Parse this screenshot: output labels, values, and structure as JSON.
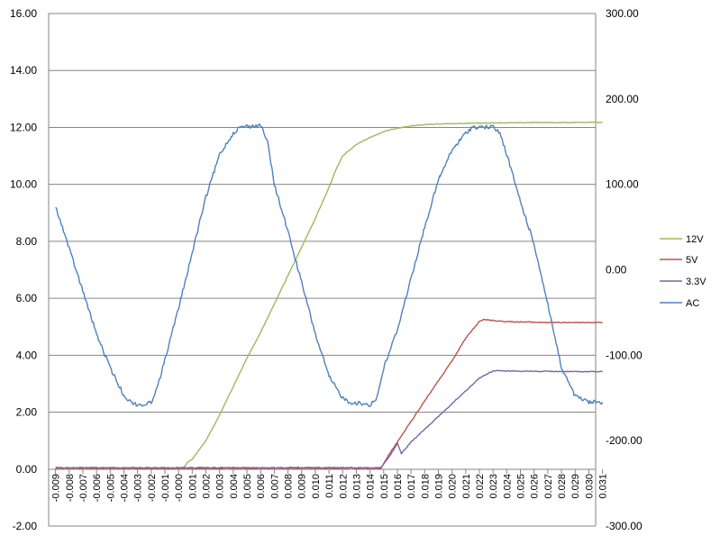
{
  "chart_data": {
    "type": "line",
    "x_tick_labels": [
      "-0.009",
      "-0.008",
      "-0.007",
      "-0.006",
      "-0.005",
      "-0.004",
      "-0.003",
      "-0.002",
      "-0.001",
      "-0.000",
      "0.001",
      "0.002",
      "0.003",
      "0.004",
      "0.005",
      "0.006",
      "0.007",
      "0.008",
      "0.009",
      "0.010",
      "0.011",
      "0.012",
      "0.013",
      "0.014",
      "0.015",
      "0.016",
      "0.017",
      "0.018",
      "0.019",
      "0.020",
      "0.021",
      "0.022",
      "0.023",
      "0.024",
      "0.025",
      "0.026",
      "0.027",
      "0.028",
      "0.029",
      "0.030",
      "0.031"
    ],
    "xlim": [
      -0.009,
      0.031
    ],
    "y_left": {
      "ylim": [
        -2,
        16
      ],
      "ticks": [
        "-2.00",
        "0.00",
        "2.00",
        "4.00",
        "6.00",
        "8.00",
        "10.00",
        "12.00",
        "14.00",
        "16.00"
      ]
    },
    "y_right": {
      "ylim": [
        -300,
        300
      ],
      "ticks": [
        "-300.00",
        "-200.00",
        "-100.00",
        "0.00",
        "100.00",
        "200.00",
        "300.00"
      ]
    },
    "grid": "horizontal",
    "legend": "right",
    "series": [
      {
        "name": "12V",
        "color": "#9bbb59",
        "axis": "left",
        "x": [
          -0.009,
          0.0003,
          0.0007,
          0.001,
          0.002,
          0.003,
          0.004,
          0.005,
          0.006,
          0.007,
          0.008,
          0.009,
          0.01,
          0.011,
          0.0115,
          0.012,
          0.013,
          0.014,
          0.015,
          0.016,
          0.017,
          0.018,
          0.02,
          0.022,
          0.025,
          0.028,
          0.031
        ],
        "y": [
          0.02,
          0.03,
          0.25,
          0.35,
          1.0,
          1.9,
          2.9,
          3.9,
          4.8,
          5.8,
          6.8,
          7.8,
          8.8,
          9.9,
          10.5,
          11.0,
          11.4,
          11.65,
          11.85,
          11.98,
          12.05,
          12.1,
          12.13,
          12.15,
          12.17,
          12.17,
          12.18
        ]
      },
      {
        "name": "5V",
        "color": "#c0504d",
        "axis": "left",
        "x": [
          -0.009,
          0.0148,
          0.0155,
          0.016,
          0.018,
          0.02,
          0.021,
          0.022,
          0.0223,
          0.024,
          0.027,
          0.031
        ],
        "y": [
          0.03,
          0.03,
          0.6,
          0.95,
          2.4,
          3.8,
          4.6,
          5.2,
          5.25,
          5.18,
          5.15,
          5.15
        ]
      },
      {
        "name": "3.3V",
        "color": "#8064a2",
        "axis": "left",
        "x": [
          -0.009,
          0.0148,
          0.0155,
          0.016,
          0.0163,
          0.017,
          0.018,
          0.02,
          0.022,
          0.023,
          0.024,
          0.027,
          0.031
        ],
        "y": [
          0.05,
          0.05,
          0.5,
          0.9,
          0.55,
          0.95,
          1.4,
          2.3,
          3.2,
          3.45,
          3.45,
          3.43,
          3.42
        ]
      },
      {
        "name": "AC",
        "color": "#4f81bd",
        "axis": "right",
        "x": [
          -0.009,
          -0.0085,
          -0.008,
          -0.007,
          -0.006,
          -0.005,
          -0.004,
          -0.0035,
          -0.003,
          -0.0025,
          -0.002,
          -0.0015,
          -0.001,
          0.0,
          0.001,
          0.002,
          0.003,
          0.004,
          0.0045,
          0.005,
          0.0055,
          0.006,
          0.0065,
          0.007,
          0.008,
          0.009,
          0.01,
          0.011,
          0.012,
          0.0125,
          0.013,
          0.0135,
          0.014,
          0.0145,
          0.015,
          0.016,
          0.017,
          0.018,
          0.019,
          0.02,
          0.021,
          0.0215,
          0.022,
          0.0225,
          0.023,
          0.0235,
          0.024,
          0.025,
          0.026,
          0.027,
          0.028,
          0.029,
          0.03,
          0.031
        ],
        "y": [
          75,
          50,
          25,
          -25,
          -75,
          -115,
          -147,
          -155,
          -158,
          -158,
          -155,
          -135,
          -105,
          -45,
          20,
          85,
          135,
          160,
          167,
          168,
          168,
          170,
          150,
          100,
          45,
          -15,
          -75,
          -125,
          -150,
          -155,
          -156,
          -157,
          -158,
          -150,
          -115,
          -70,
          -10,
          50,
          105,
          140,
          160,
          167,
          167,
          167,
          167,
          160,
          135,
          80,
          30,
          -40,
          -115,
          -148,
          -155,
          -155
        ]
      }
    ]
  }
}
